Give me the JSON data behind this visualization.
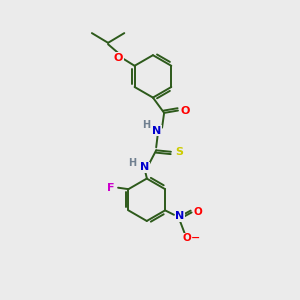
{
  "bg_color": "#ebebeb",
  "bond_color": "#2d5a1b",
  "atom_colors": {
    "O": "#ff0000",
    "N": "#0000cd",
    "S": "#cccc00",
    "F": "#cc00cc",
    "H": "#708090",
    "C": "#2d5a1b"
  },
  "figsize": [
    3.0,
    3.0
  ],
  "dpi": 100,
  "lw": 1.4,
  "ring_r": 0.72
}
